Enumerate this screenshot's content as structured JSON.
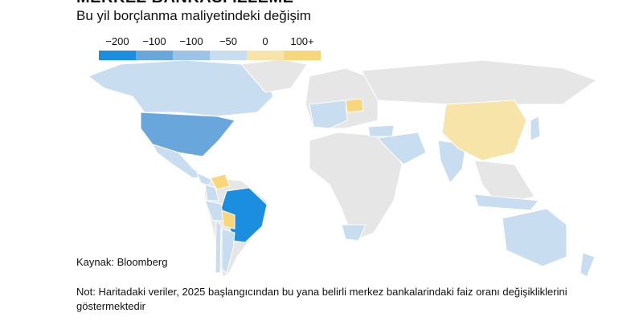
{
  "header": {
    "title": "MERKEZ BANKASI İZLEME",
    "subtitle": "Bu yil borçlanma maliyetindeki değişim"
  },
  "legend": {
    "items": [
      {
        "label": "−200",
        "color": "#1b8ee0"
      },
      {
        "label": "−100",
        "color": "#69a6dc"
      },
      {
        "label": "−100",
        "color": "#9dc3e6"
      },
      {
        "label": "−50",
        "color": "#c8ddef"
      },
      {
        "label": "0",
        "color": "#f7e4a8"
      },
      {
        "label": "100+",
        "color": "#f8d67c"
      }
    ]
  },
  "footer": {
    "source": "Kaynak: Bloomberg",
    "note": "Not: Haritadaki veriler, 2025 başlangıcından bu yana belirli merkez bankalarindaki faiz oranı değişikliklerini göstermektedir"
  }
}
